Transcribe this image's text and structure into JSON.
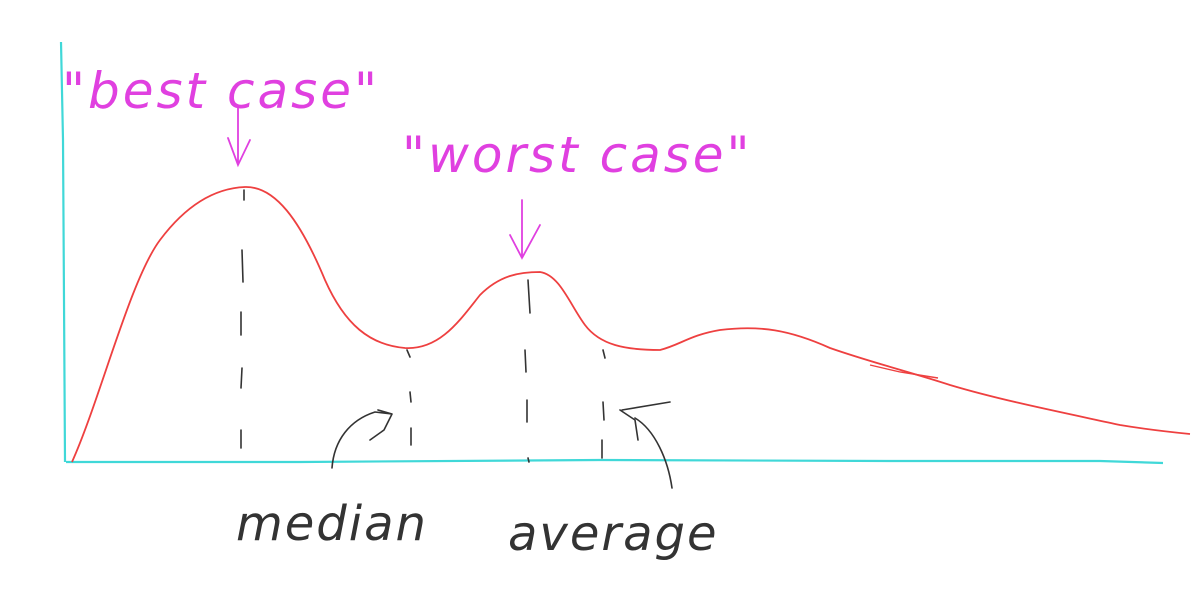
{
  "annotations": {
    "best_case": "\"best case\"",
    "worst_case": "\"worst case\"",
    "median": "median",
    "average": "average"
  },
  "colors": {
    "axis": "#40d8d8",
    "curve": "#ee4040",
    "annotation": "#e040e0",
    "ink": "#333333"
  }
}
